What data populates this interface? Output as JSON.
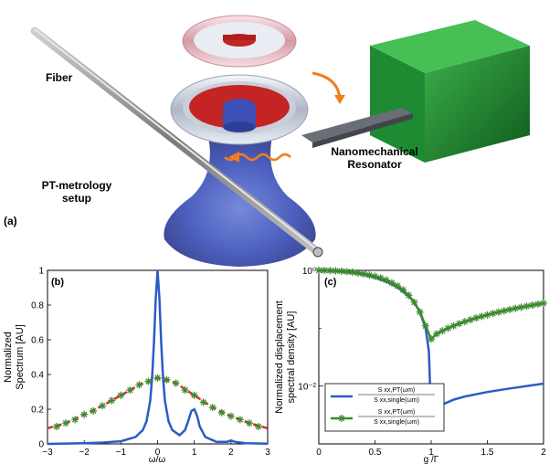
{
  "panel_a": {
    "label": "(a)",
    "fiber_label": "Fiber",
    "setup_label_line1": "PT-metrology",
    "setup_label_line2": "setup",
    "resonator_label_line1": "Nanomechanical",
    "resonator_label_line2": "Resonator"
  },
  "colors": {
    "blue": "#2a5cc6",
    "green": "#3c8a2e",
    "red": "#e03030",
    "orange": "#f08020"
  },
  "chart_data": [
    {
      "type": "line",
      "panel_label": "(b)",
      "xlabel": "ω/ω",
      "ylabel_line1": "Normalized",
      "ylabel_line2": "Spectrum [AU]",
      "xlim": [
        -3,
        3
      ],
      "ylim": [
        0,
        1
      ],
      "x_ticks": [
        "−3",
        "−2",
        "−1",
        "0",
        "1",
        "2",
        "3"
      ],
      "y_ticks": [
        "0",
        "0.2",
        "0.4",
        "0.6",
        "0.8",
        "1"
      ],
      "series": [
        {
          "color": "blue",
          "x": [
            -3,
            -2.5,
            -2,
            -1.5,
            -1,
            -0.6,
            -0.4,
            -0.3,
            -0.2,
            -0.15,
            -0.1,
            -0.05,
            0,
            0.05,
            0.1,
            0.15,
            0.2,
            0.3,
            0.4,
            0.6,
            0.75,
            0.85,
            0.92,
            1.0,
            1.08,
            1.15,
            1.3,
            1.6,
            1.9,
            2.0,
            2.1,
            2.4,
            3.0
          ],
          "y": [
            0,
            0.002,
            0.004,
            0.008,
            0.015,
            0.04,
            0.08,
            0.13,
            0.25,
            0.38,
            0.58,
            0.84,
            1.0,
            0.84,
            0.58,
            0.38,
            0.25,
            0.13,
            0.08,
            0.05,
            0.08,
            0.14,
            0.19,
            0.2,
            0.16,
            0.1,
            0.04,
            0.012,
            0.012,
            0.02,
            0.012,
            0.004,
            0.001
          ]
        },
        {
          "color": "red",
          "dashed": true,
          "x": [
            -3,
            -2.5,
            -2,
            -1.5,
            -1,
            -0.5,
            0,
            0.5,
            1,
            1.5,
            2,
            2.5,
            3
          ],
          "y": [
            0.09,
            0.12,
            0.17,
            0.22,
            0.28,
            0.34,
            0.38,
            0.35,
            0.28,
            0.21,
            0.16,
            0.12,
            0.09
          ]
        },
        {
          "color": "green",
          "marker": "asterisk",
          "x": [
            -2.75,
            -2.5,
            -2.25,
            -2.0,
            -1.75,
            -1.5,
            -1.25,
            -1.0,
            -0.75,
            -0.5,
            -0.25,
            0,
            0.25,
            0.5,
            0.75,
            1.0,
            1.25,
            1.5,
            1.75,
            2.0,
            2.25,
            2.5,
            2.75
          ],
          "y": [
            0.1,
            0.12,
            0.14,
            0.17,
            0.19,
            0.22,
            0.25,
            0.28,
            0.31,
            0.34,
            0.36,
            0.38,
            0.37,
            0.35,
            0.31,
            0.28,
            0.24,
            0.21,
            0.18,
            0.16,
            0.14,
            0.12,
            0.1
          ]
        }
      ]
    },
    {
      "type": "line",
      "panel_label": "(c)",
      "xlabel": "g /Γ",
      "ylabel_line1": "Normalized displacement",
      "ylabel_line2": "spectral density [AU]",
      "xlim": [
        0,
        2
      ],
      "ylim": [
        0.001,
        1
      ],
      "yscale": "log",
      "x_ticks": [
        "0",
        "0.5",
        "1",
        "1.5",
        "2"
      ],
      "y_ticks": [
        "10⁰",
        "10⁻²"
      ],
      "legend": {
        "placement": "bottom-left",
        "entry1_num": "S xx,PT(ωm)",
        "entry1_den": "S xx,single(ωm)",
        "entry2_num": "S xx,PT(ωm)",
        "entry2_den": "S xx,single(ωm)"
      },
      "series": [
        {
          "color": "blue",
          "x": [
            0,
            0.1,
            0.2,
            0.3,
            0.4,
            0.5,
            0.6,
            0.7,
            0.8,
            0.85,
            0.9,
            0.95,
            0.98,
            1.0,
            1.02,
            1.05,
            1.1,
            1.2,
            1.3,
            1.5,
            1.7,
            2.0
          ],
          "y": [
            1.0,
            0.99,
            0.96,
            0.91,
            0.84,
            0.75,
            0.64,
            0.51,
            0.36,
            0.28,
            0.19,
            0.1,
            0.04,
            0.0028,
            0.0035,
            0.0042,
            0.0048,
            0.0058,
            0.0066,
            0.0079,
            0.0091,
            0.011
          ]
        },
        {
          "color": "green",
          "marker": "asterisk",
          "x": [
            0,
            0.05,
            0.1,
            0.15,
            0.2,
            0.25,
            0.3,
            0.35,
            0.4,
            0.45,
            0.5,
            0.55,
            0.6,
            0.65,
            0.7,
            0.75,
            0.8,
            0.85,
            0.9,
            0.95,
            1.0,
            1.05,
            1.1,
            1.15,
            1.2,
            1.25,
            1.3,
            1.35,
            1.4,
            1.45,
            1.5,
            1.55,
            1.6,
            1.65,
            1.7,
            1.75,
            1.8,
            1.85,
            1.9,
            1.95,
            2.0
          ],
          "y": [
            1.0,
            1.0,
            0.99,
            0.98,
            0.97,
            0.95,
            0.93,
            0.9,
            0.87,
            0.83,
            0.79,
            0.74,
            0.68,
            0.61,
            0.54,
            0.46,
            0.37,
            0.28,
            0.19,
            0.11,
            0.065,
            0.08,
            0.09,
            0.1,
            0.11,
            0.12,
            0.13,
            0.14,
            0.15,
            0.16,
            0.17,
            0.18,
            0.19,
            0.2,
            0.21,
            0.22,
            0.23,
            0.24,
            0.25,
            0.26,
            0.27
          ]
        }
      ]
    }
  ]
}
